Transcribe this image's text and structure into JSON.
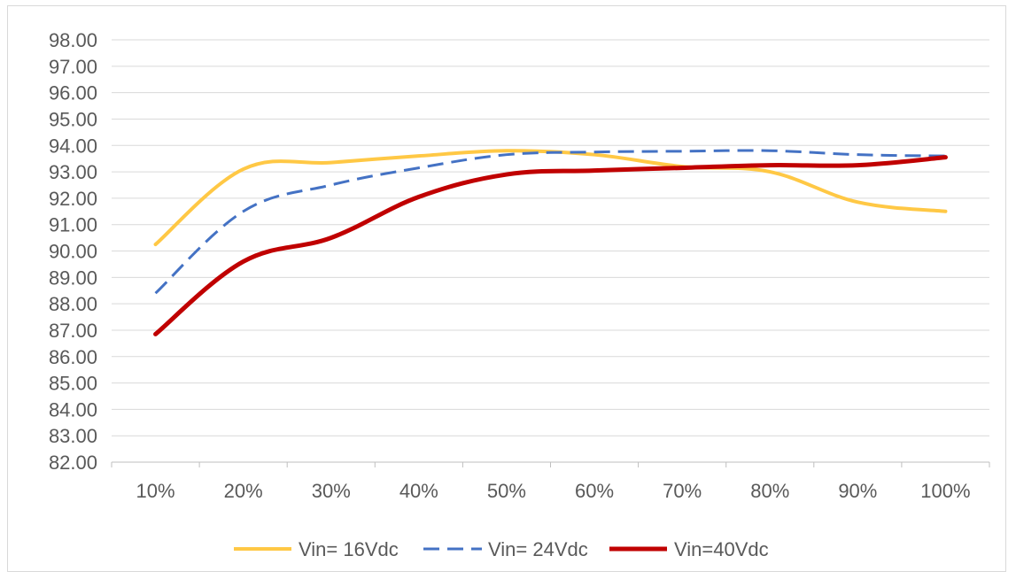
{
  "chart_data": {
    "type": "line",
    "title": "",
    "xlabel": "",
    "ylabel": "",
    "categories": [
      "10%",
      "20%",
      "30%",
      "40%",
      "50%",
      "60%",
      "70%",
      "80%",
      "90%",
      "100%"
    ],
    "ylim": [
      82.0,
      98.0
    ],
    "yticks": [
      "82.00",
      "83.00",
      "84.00",
      "85.00",
      "86.00",
      "87.00",
      "88.00",
      "89.00",
      "90.00",
      "91.00",
      "92.00",
      "93.00",
      "94.00",
      "95.00",
      "96.00",
      "97.00",
      "98.00"
    ],
    "grid": "horizontal",
    "legend_position": "bottom",
    "series": [
      {
        "name": "Vin= 16Vdc",
        "color": "#FFC845",
        "style": "solid",
        "values": [
          90.25,
          93.1,
          93.35,
          93.6,
          93.8,
          93.65,
          93.2,
          93.0,
          91.85,
          91.5
        ]
      },
      {
        "name": "Vin= 24Vdc",
        "color": "#4472C4",
        "style": "dashed",
        "values": [
          88.4,
          91.5,
          92.5,
          93.15,
          93.65,
          93.75,
          93.78,
          93.8,
          93.65,
          93.6
        ]
      },
      {
        "name": "Vin=40Vdc",
        "color": "#C00000",
        "style": "solid",
        "values": [
          86.85,
          89.6,
          90.5,
          92.05,
          92.9,
          93.05,
          93.15,
          93.25,
          93.25,
          93.55
        ]
      }
    ]
  }
}
